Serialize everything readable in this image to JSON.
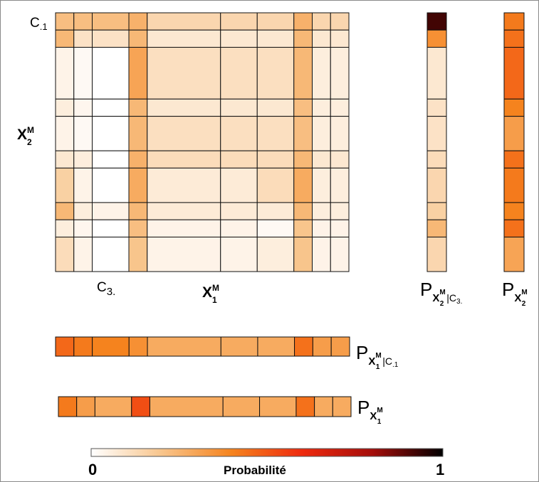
{
  "labels": {
    "c_col": "C",
    "c_col_sub": ".1",
    "c_row": "C",
    "c_row_sub": "3.",
    "x2": "X",
    "x2_sup": "M",
    "x2_sub": "2",
    "x1": "X",
    "x1_sup": "M",
    "x1_sub": "1",
    "p": "P",
    "p_x2_cond_sub": "X",
    "p_x2_cond_sup": "M",
    "p_x2_cond_idx": "2",
    "p_x2_cond_c": "|C",
    "p_x2_cond_c_sub": "3.",
    "p_x2_sub": "X",
    "p_x2_sup": "M",
    "p_x2_idx": "2",
    "p_x1_cond_sub": "X",
    "p_x1_cond_sup": "M",
    "p_x1_cond_idx": "1",
    "p_x1_cond_c": "|C",
    "p_x1_cond_c_sub": ".1",
    "p_x1_sub": "X",
    "p_x1_sup": "M",
    "p_x1_idx": "1"
  },
  "colorbar": {
    "min_label": "0",
    "max_label": "1",
    "title": "Probabilité",
    "stops": [
      "#ffffff",
      "#f8c58c",
      "#f5831e",
      "#ee2a0e",
      "#a50d0a",
      "#000000"
    ]
  },
  "colors": {
    "grid_line": "#111111",
    "border": "#8a8a8a"
  },
  "chart_data": {
    "type": "heatmap",
    "value_scale": [
      0,
      1
    ],
    "x_partition_widths": [
      1,
      1,
      2,
      1,
      4,
      2,
      2,
      1,
      1,
      1
    ],
    "y_partition_heights": [
      1,
      1,
      3,
      1,
      2,
      1,
      2,
      1,
      1,
      2
    ],
    "joint_matrix": [
      [
        0.22,
        0.22,
        0.22,
        0.26,
        0.14,
        0.14,
        0.14,
        0.26,
        0.14,
        0.14
      ],
      [
        0.24,
        0.1,
        0.1,
        0.24,
        0.08,
        0.08,
        0.08,
        0.24,
        0.08,
        0.08
      ],
      [
        0.04,
        0.02,
        0.0,
        0.3,
        0.11,
        0.11,
        0.11,
        0.24,
        0.06,
        0.06
      ],
      [
        0.06,
        0.03,
        0.0,
        0.24,
        0.08,
        0.08,
        0.08,
        0.22,
        0.06,
        0.06
      ],
      [
        0.04,
        0.02,
        0.0,
        0.24,
        0.11,
        0.11,
        0.11,
        0.22,
        0.06,
        0.06
      ],
      [
        0.08,
        0.06,
        0.0,
        0.26,
        0.12,
        0.12,
        0.12,
        0.24,
        0.08,
        0.08
      ],
      [
        0.16,
        0.04,
        0.0,
        0.28,
        0.07,
        0.07,
        0.12,
        0.28,
        0.06,
        0.06
      ],
      [
        0.24,
        0.06,
        0.04,
        0.24,
        0.07,
        0.07,
        0.07,
        0.24,
        0.06,
        0.06
      ],
      [
        0.06,
        0.03,
        0.0,
        0.22,
        0.04,
        0.04,
        0.02,
        0.2,
        0.04,
        0.04
      ],
      [
        0.12,
        0.04,
        0.0,
        0.2,
        0.04,
        0.04,
        0.06,
        0.2,
        0.04,
        0.04
      ]
    ],
    "p_x2_given_c3": [
      0.92,
      0.36,
      0.08,
      0.1,
      0.1,
      0.12,
      0.14,
      0.16,
      0.24,
      0.14
    ],
    "p_x2": [
      0.42,
      0.44,
      0.46,
      0.4,
      0.32,
      0.44,
      0.42,
      0.4,
      0.44,
      0.3
    ],
    "p_x1_given_c1": [
      0.46,
      0.42,
      0.4,
      0.36,
      0.28,
      0.28,
      0.28,
      0.44,
      0.32,
      0.32
    ],
    "p_x1": [
      0.42,
      0.32,
      0.28,
      0.52,
      0.28,
      0.28,
      0.28,
      0.44,
      0.28,
      0.28
    ]
  }
}
